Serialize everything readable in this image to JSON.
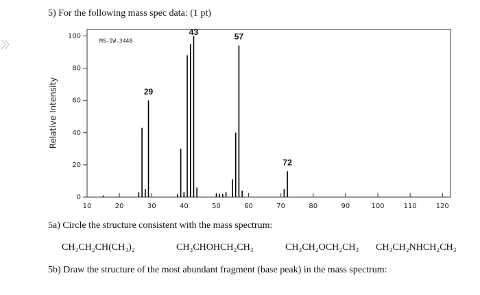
{
  "question": "5) For the following mass spec data: (1 pt)",
  "chart_data": {
    "type": "bar",
    "annotation": "MS-IW-3448",
    "ylabel": "Relative Intensity",
    "x": [
      15,
      26,
      27,
      28,
      29,
      38,
      39,
      40,
      41,
      42,
      43,
      44,
      50,
      51,
      52,
      53,
      55,
      56,
      57,
      58,
      71,
      72
    ],
    "values": [
      1,
      3,
      43,
      5,
      60,
      2,
      30,
      3,
      88,
      95,
      100,
      6,
      2,
      2,
      2,
      3,
      11,
      40,
      94,
      4,
      5,
      16
    ],
    "peak_labels": [
      29,
      43,
      57,
      72
    ],
    "color": "#000000",
    "xlim": [
      10,
      122.5
    ],
    "xticks": [
      10,
      20,
      30,
      40,
      50,
      60,
      70,
      80,
      90,
      100,
      110,
      120
    ],
    "ylim": [
      0,
      104
    ],
    "yticks": [
      0,
      20,
      40,
      60,
      80,
      100
    ]
  },
  "part_a": "5a) Circle the structure consistent with the mass spectrum:",
  "options": [
    "CH₃CH₂CH(CH₃)₂",
    "CH₃CHOHCH₂CH₃",
    "CH₃CH₂OCH₂CH₃",
    "CH₃CH₂NHCH₂CH₃"
  ],
  "part_b": "5b) Draw the structure of the most abundant fragment (base peak) in the mass spectrum:"
}
